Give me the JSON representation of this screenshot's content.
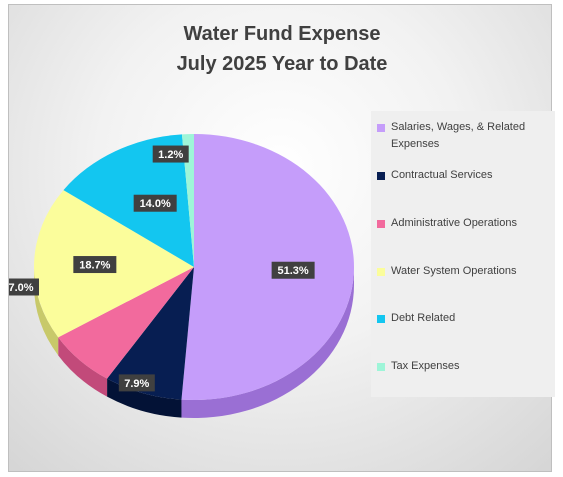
{
  "chart_data": {
    "type": "pie",
    "title_lines": [
      "Water Fund Expense",
      "July 2025 Year to Date"
    ],
    "slices": [
      {
        "label": "Salaries, Wages, & Related Expenses",
        "value": 51.3,
        "value_label": "51.3%",
        "color": "#c59dfa",
        "side_color": "#9a6fd4"
      },
      {
        "label": "Contractual Services",
        "value": 7.9,
        "value_label": "7.9%",
        "color": "#071e52",
        "side_color": "#031236"
      },
      {
        "label": "Administrative Operations",
        "value": 7.0,
        "value_label": "7.0%",
        "color": "#f26a9d",
        "side_color": "#c24a7a"
      },
      {
        "label": "Water System Operations",
        "value": 18.7,
        "value_label": "18.7%",
        "color": "#fbfd9b",
        "side_color": "#c8c96a"
      },
      {
        "label": "Debt Related",
        "value": 14.0,
        "value_label": "14.0%",
        "color": "#13c6f0",
        "side_color": "#0e97b8"
      },
      {
        "label": "Tax Expenses",
        "value": 1.2,
        "value_label": "1.2%",
        "color": "#9ef5d8",
        "side_color": "#6ec4a8"
      }
    ],
    "legend_position": "right",
    "data_label_style": "dark boxes with white text"
  }
}
